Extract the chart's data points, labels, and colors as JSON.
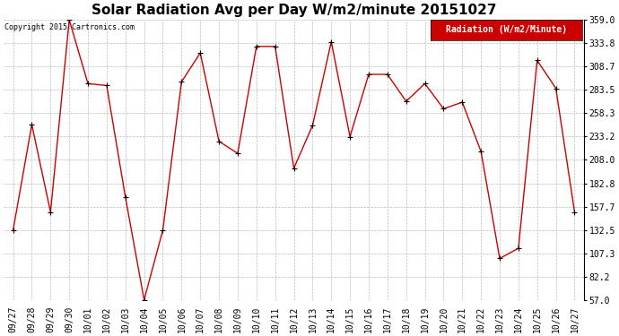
{
  "title": "Solar Radiation Avg per Day W/m2/minute 20151027",
  "copyright": "Copyright 2015 Cartronics.com",
  "legend_label": "Radiation (W/m2/Minute)",
  "dates": [
    "09/27",
    "09/28",
    "09/29",
    "09/30",
    "10/01",
    "10/02",
    "10/03",
    "10/04",
    "10/05",
    "10/06",
    "10/07",
    "10/08",
    "10/09",
    "10/10",
    "10/11",
    "10/12",
    "10/13",
    "10/14",
    "10/15",
    "10/16",
    "10/17",
    "10/18",
    "10/19",
    "10/20",
    "10/21",
    "10/22",
    "10/23",
    "10/24",
    "10/25",
    "10/26",
    "10/27"
  ],
  "values": [
    132.5,
    246.0,
    152.0,
    358.5,
    290.0,
    288.0,
    168.0,
    57.5,
    132.5,
    292.0,
    323.0,
    228.0,
    215.0,
    330.0,
    330.0,
    199.0,
    245.0,
    335.0,
    233.0,
    300.0,
    300.0,
    271.0,
    290.0,
    263.0,
    270.0,
    217.0,
    102.0,
    113.0,
    315.0,
    285.0,
    152.0
  ],
  "ylim": [
    57.0,
    359.0
  ],
  "yticks": [
    57.0,
    82.2,
    107.3,
    132.5,
    157.7,
    182.8,
    208.0,
    233.2,
    258.3,
    283.5,
    308.7,
    333.8,
    359.0
  ],
  "line_color": "#cc0000",
  "marker_color": "#000000",
  "bg_color": "#ffffff",
  "grid_color": "#bbbbbb",
  "title_fontsize": 11,
  "copyright_fontsize": 6,
  "tick_fontsize": 7,
  "legend_bg": "#cc0000",
  "legend_text_color": "#ffffff",
  "legend_fontsize": 7
}
